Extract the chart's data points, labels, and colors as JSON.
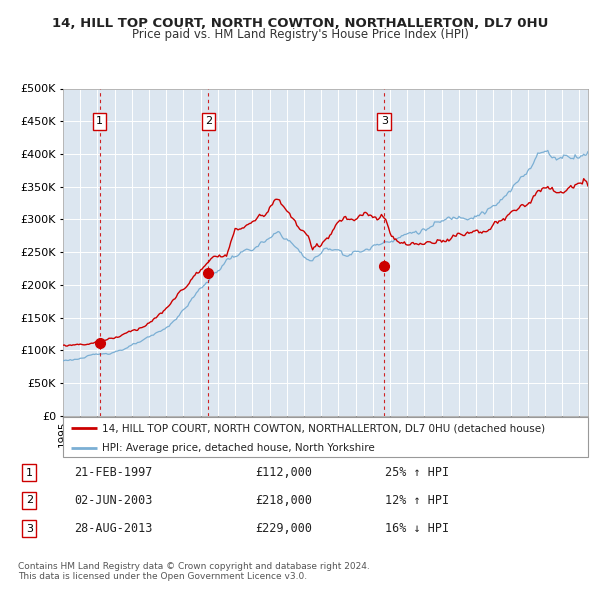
{
  "title1": "14, HILL TOP COURT, NORTH COWTON, NORTHALLERTON, DL7 0HU",
  "title2": "Price paid vs. HM Land Registry's House Price Index (HPI)",
  "background_color": "#ffffff",
  "plot_bg_color": "#dce6f0",
  "grid_color": "#ffffff",
  "sale_color": "#cc0000",
  "hpi_color": "#7bafd4",
  "sale_dates": [
    1997.13,
    2003.45,
    2013.66
  ],
  "sale_prices": [
    112000,
    218000,
    229000
  ],
  "sale_labels": [
    "1",
    "2",
    "3"
  ],
  "legend_sale": "14, HILL TOP COURT, NORTH COWTON, NORTHALLERTON, DL7 0HU (detached house)",
  "legend_hpi": "HPI: Average price, detached house, North Yorkshire",
  "table_rows": [
    {
      "label": "1",
      "date": "21-FEB-1997",
      "price": "£112,000",
      "change": "25% ↑ HPI"
    },
    {
      "label": "2",
      "date": "02-JUN-2003",
      "price": "£218,000",
      "change": "12% ↑ HPI"
    },
    {
      "label": "3",
      "date": "28-AUG-2013",
      "price": "£229,000",
      "change": "16% ↓ HPI"
    }
  ],
  "footnote1": "Contains HM Land Registry data © Crown copyright and database right 2024.",
  "footnote2": "This data is licensed under the Open Government Licence v3.0.",
  "ylim": [
    0,
    500000
  ],
  "yticks": [
    0,
    50000,
    100000,
    150000,
    200000,
    250000,
    300000,
    350000,
    400000,
    450000,
    500000
  ],
  "xlim": [
    1995.0,
    2025.5
  ]
}
